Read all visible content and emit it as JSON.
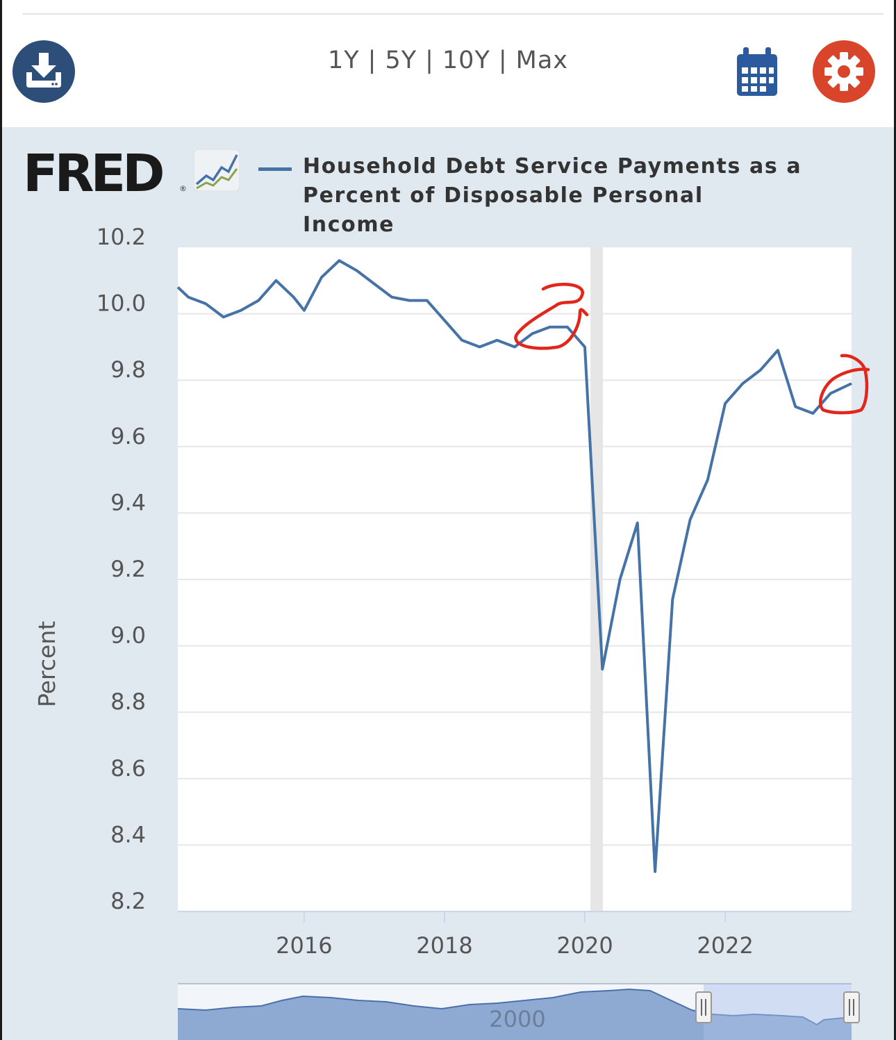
{
  "toolbar": {
    "range_options": [
      "1Y",
      "5Y",
      "10Y",
      "Max"
    ],
    "separator": "|"
  },
  "colors": {
    "series": "#4572a7",
    "download_button": "#2c4e79",
    "settings_button": "#d9452b",
    "calendar_icon": "#2c5a9e",
    "panel_bg": "#e1e9f0",
    "annotation": "#e3261b"
  },
  "logo": {
    "text": "FRED"
  },
  "chart_data": {
    "type": "line",
    "title": "",
    "legend": "Household Debt Service Payments as a Percent of Disposable Personal Income",
    "legend_lines": [
      "Household Debt Service Payments as a",
      "Percent of Disposable Personal Income"
    ],
    "ylabel": "Percent",
    "xlabel": "",
    "ylim": [
      8.2,
      10.2
    ],
    "yticks": [
      10.2,
      10.0,
      9.8,
      9.6,
      9.4,
      9.2,
      9.0,
      8.8,
      8.6,
      8.4,
      8.2
    ],
    "xticks": [
      "2016",
      "2018",
      "2020",
      "2022"
    ],
    "xtick_values": [
      2016.0,
      2018.0,
      2020.0,
      2022.0
    ],
    "xlim": [
      2014.2,
      2023.8
    ],
    "recession_band": [
      2020.0,
      2020.25
    ],
    "series": [
      {
        "name": "Household Debt Service Payments as a Percent of Disposable Personal Income",
        "x": [
          2014.2,
          2014.35,
          2014.6,
          2014.85,
          2015.1,
          2015.35,
          2015.6,
          2015.85,
          2016.0,
          2016.25,
          2016.5,
          2016.75,
          2017.0,
          2017.25,
          2017.5,
          2017.75,
          2018.0,
          2018.25,
          2018.5,
          2018.75,
          2019.0,
          2019.25,
          2019.5,
          2019.75,
          2020.0,
          2020.25,
          2020.5,
          2020.75,
          2021.0,
          2021.25,
          2021.5,
          2021.75,
          2022.0,
          2022.25,
          2022.5,
          2022.75,
          2023.0,
          2023.25,
          2023.5,
          2023.8
        ],
        "values": [
          10.08,
          10.05,
          10.03,
          9.99,
          10.01,
          10.04,
          10.1,
          10.05,
          10.01,
          10.11,
          10.16,
          10.13,
          10.09,
          10.05,
          10.04,
          10.04,
          9.98,
          9.92,
          9.9,
          9.92,
          9.9,
          9.94,
          9.96,
          9.96,
          9.9,
          8.93,
          9.2,
          9.37,
          8.32,
          9.14,
          9.38,
          9.5,
          9.73,
          9.79,
          9.83,
          9.89,
          9.72,
          9.7,
          9.76,
          9.79
        ]
      }
    ],
    "navigator": {
      "label": "2000",
      "selected_range": [
        2014.2,
        2023.8
      ]
    }
  }
}
